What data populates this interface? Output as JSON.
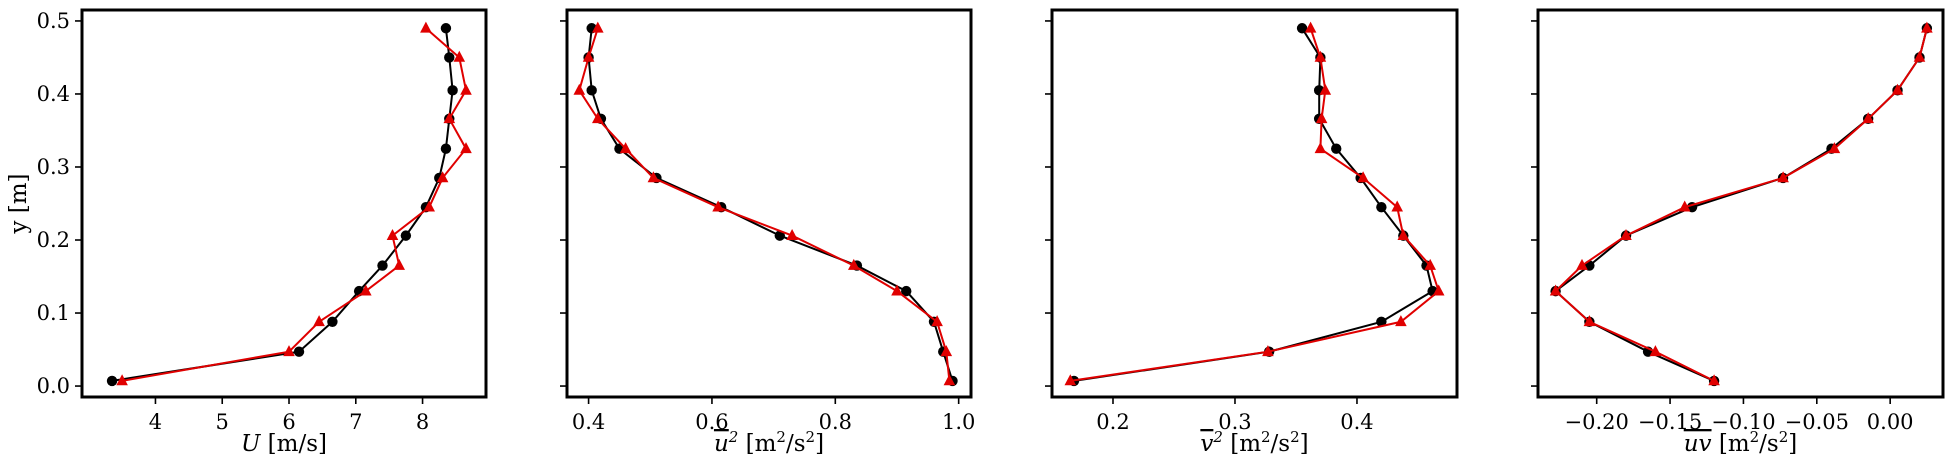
{
  "chart_data": [
    {
      "type": "line",
      "xlabel_parts": [
        {
          "t": "U",
          "italic": true
        },
        {
          "t": " [m/s]"
        }
      ],
      "ylabel": "y [m]",
      "xlim": [
        2.9,
        8.95
      ],
      "ylim": [
        -0.015,
        0.515
      ],
      "xticks": [
        4,
        5,
        6,
        7,
        8
      ],
      "xtick_labels": [
        "4",
        "5",
        "6",
        "7",
        "8"
      ],
      "yticks": [
        0.0,
        0.1,
        0.2,
        0.3,
        0.4,
        0.5
      ],
      "ytick_labels": [
        "0.0",
        "0.1",
        "0.2",
        "0.3",
        "0.4",
        "0.5"
      ],
      "series": [
        {
          "marker": "circle",
          "color": "#000000",
          "x": [
            3.35,
            6.15,
            6.65,
            7.05,
            7.4,
            7.75,
            8.05,
            8.25,
            8.35,
            8.4,
            8.45,
            8.4,
            8.35
          ],
          "y": [
            0.007,
            0.047,
            0.088,
            0.13,
            0.165,
            0.206,
            0.245,
            0.285,
            0.325,
            0.366,
            0.405,
            0.45,
            0.49
          ]
        },
        {
          "marker": "triangle",
          "color": "#e00000",
          "x": [
            3.5,
            6.0,
            6.45,
            7.15,
            7.65,
            7.55,
            8.1,
            8.3,
            8.65,
            8.4,
            8.65,
            8.55,
            8.05
          ],
          "y": [
            0.007,
            0.047,
            0.088,
            0.13,
            0.165,
            0.206,
            0.245,
            0.285,
            0.325,
            0.366,
            0.405,
            0.45,
            0.49
          ]
        }
      ]
    },
    {
      "type": "line",
      "xlabel_parts": [
        {
          "t": "u",
          "italic": true,
          "overline": true
        },
        {
          "t": "2",
          "sup": true,
          "italic": true
        },
        {
          "t": " [m"
        },
        {
          "t": "2",
          "sup": true
        },
        {
          "t": "/s"
        },
        {
          "t": "2",
          "sup": true
        },
        {
          "t": "]"
        }
      ],
      "ylabel": "",
      "xlim": [
        0.365,
        1.02
      ],
      "ylim": [
        -0.015,
        0.515
      ],
      "xticks": [
        0.4,
        0.6,
        0.8,
        1.0
      ],
      "xtick_labels": [
        "0.4",
        "0.6",
        "0.8",
        "1.0"
      ],
      "yticks": [
        0.0,
        0.1,
        0.2,
        0.3,
        0.4,
        0.5
      ],
      "ytick_labels": [],
      "series": [
        {
          "marker": "circle",
          "color": "#000000",
          "x": [
            0.99,
            0.975,
            0.96,
            0.915,
            0.835,
            0.71,
            0.615,
            0.51,
            0.45,
            0.42,
            0.405,
            0.4,
            0.405
          ],
          "y": [
            0.007,
            0.047,
            0.088,
            0.13,
            0.165,
            0.206,
            0.245,
            0.285,
            0.325,
            0.366,
            0.405,
            0.45,
            0.49
          ]
        },
        {
          "marker": "triangle",
          "color": "#e00000",
          "x": [
            0.985,
            0.98,
            0.965,
            0.9,
            0.83,
            0.73,
            0.61,
            0.505,
            0.46,
            0.415,
            0.385,
            0.4,
            0.415
          ],
          "y": [
            0.007,
            0.047,
            0.088,
            0.13,
            0.165,
            0.206,
            0.245,
            0.285,
            0.325,
            0.366,
            0.405,
            0.45,
            0.49
          ]
        }
      ]
    },
    {
      "type": "line",
      "xlabel_parts": [
        {
          "t": "v",
          "italic": true,
          "overline": true
        },
        {
          "t": "2",
          "sup": true,
          "italic": true
        },
        {
          "t": " [m"
        },
        {
          "t": "2",
          "sup": true
        },
        {
          "t": "/s"
        },
        {
          "t": "2",
          "sup": true
        },
        {
          "t": "]"
        }
      ],
      "ylabel": "",
      "xlim": [
        0.15,
        0.482
      ],
      "ylim": [
        -0.015,
        0.515
      ],
      "xticks": [
        0.2,
        0.3,
        0.4
      ],
      "xtick_labels": [
        "0.2",
        "0.3",
        "0.4"
      ],
      "yticks": [
        0.0,
        0.1,
        0.2,
        0.3,
        0.4,
        0.5
      ],
      "ytick_labels": [],
      "series": [
        {
          "marker": "circle",
          "color": "#000000",
          "x": [
            0.168,
            0.328,
            0.42,
            0.462,
            0.457,
            0.438,
            0.42,
            0.403,
            0.383,
            0.369,
            0.369,
            0.37,
            0.355
          ],
          "y": [
            0.007,
            0.047,
            0.088,
            0.13,
            0.165,
            0.206,
            0.245,
            0.285,
            0.325,
            0.366,
            0.405,
            0.45,
            0.49
          ]
        },
        {
          "marker": "triangle",
          "color": "#e00000",
          "x": [
            0.165,
            0.327,
            0.436,
            0.467,
            0.46,
            0.438,
            0.433,
            0.405,
            0.37,
            0.371,
            0.374,
            0.37,
            0.362
          ],
          "y": [
            0.007,
            0.047,
            0.088,
            0.13,
            0.165,
            0.206,
            0.245,
            0.285,
            0.325,
            0.366,
            0.405,
            0.45,
            0.49
          ]
        }
      ]
    },
    {
      "type": "line",
      "xlabel_parts": [
        {
          "t": "uv",
          "italic": true,
          "overline": true
        },
        {
          "t": " [m"
        },
        {
          "t": "2",
          "sup": true
        },
        {
          "t": "/s"
        },
        {
          "t": "2",
          "sup": true
        },
        {
          "t": "]"
        }
      ],
      "ylabel": "",
      "xlim": [
        -0.24,
        0.036
      ],
      "ylim": [
        -0.015,
        0.515
      ],
      "xticks": [
        -0.2,
        -0.15,
        -0.1,
        -0.05,
        0.0
      ],
      "xtick_labels": [
        "−0.20",
        "−0.15",
        "−0.10",
        "−0.05",
        "0.00"
      ],
      "yticks": [
        0.0,
        0.1,
        0.2,
        0.3,
        0.4,
        0.5
      ],
      "ytick_labels": [],
      "series": [
        {
          "marker": "circle",
          "color": "#000000",
          "x": [
            -0.12,
            -0.165,
            -0.205,
            -0.228,
            -0.205,
            -0.18,
            -0.135,
            -0.073,
            -0.04,
            -0.015,
            0.005,
            0.02,
            0.025
          ],
          "y": [
            0.007,
            0.047,
            0.088,
            0.13,
            0.165,
            0.206,
            0.245,
            0.285,
            0.325,
            0.366,
            0.405,
            0.45,
            0.49
          ]
        },
        {
          "marker": "triangle",
          "color": "#e00000",
          "x": [
            -0.12,
            -0.16,
            -0.205,
            -0.228,
            -0.21,
            -0.18,
            -0.14,
            -0.073,
            -0.038,
            -0.015,
            0.005,
            0.02,
            0.025
          ],
          "y": [
            0.007,
            0.047,
            0.088,
            0.13,
            0.165,
            0.206,
            0.245,
            0.285,
            0.325,
            0.366,
            0.405,
            0.45,
            0.49
          ]
        }
      ]
    }
  ]
}
